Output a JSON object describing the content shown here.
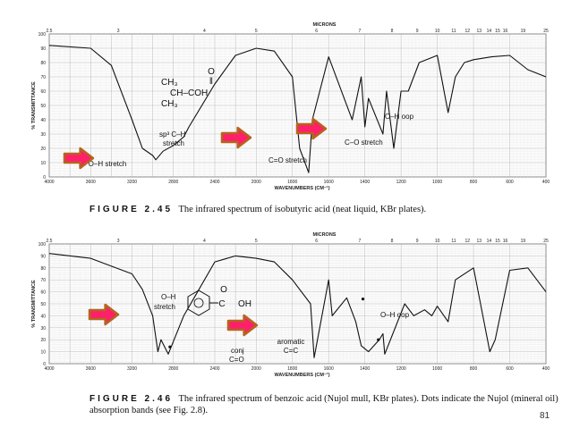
{
  "chart_data": [
    {
      "type": "line",
      "figure_label": "FIGURE 2.45",
      "caption": "The infrared spectrum of isobutyric acid (neat liquid, KBr plates).",
      "xlabel": "WAVENUMBERS (CM⁻¹)",
      "ylabel": "% TRANSMITTANCE",
      "top_axis_label": "MICRONS",
      "x_ticks": [
        "4000",
        "3600",
        "3200",
        "2800",
        "2400",
        "2000",
        "1800",
        "1600",
        "1400",
        "1200",
        "1000",
        "800",
        "600",
        "400"
      ],
      "y_ticks": [
        "0",
        "10",
        "20",
        "30",
        "40",
        "50",
        "60",
        "70",
        "80",
        "90",
        "100"
      ],
      "top_ticks": [
        "2.5",
        "3",
        "4",
        "5",
        "6",
        "7",
        "8",
        "9",
        "10",
        "11",
        "12",
        "13",
        "14",
        "15",
        "16",
        "19",
        "25"
      ],
      "ylim": [
        0,
        100
      ],
      "x": [
        "4000",
        "3600",
        "3400",
        "3200",
        "3100",
        "3000",
        "2970",
        "2900",
        "2800",
        "2700",
        "2650",
        "2400",
        "2200",
        "2000",
        "1900",
        "1800",
        "1760",
        "1710",
        "1690",
        "1600",
        "1470",
        "1420",
        "1400",
        "1380",
        "1300",
        "1280",
        "1240",
        "1200",
        "1160",
        "1100",
        "1000",
        "940",
        "900",
        "850",
        "800",
        "700",
        "600",
        "500",
        "400"
      ],
      "y": [
        92,
        90,
        78,
        40,
        20,
        15,
        12,
        18,
        22,
        28,
        35,
        65,
        85,
        90,
        88,
        70,
        20,
        3,
        40,
        84,
        40,
        70,
        35,
        55,
        30,
        60,
        20,
        60,
        60,
        80,
        85,
        45,
        70,
        80,
        82,
        84,
        85,
        75,
        70
      ],
      "annotations": [
        "CH₃",
        "CH–COH",
        "CH₃",
        "O",
        "‖",
        "sp³ C–H",
        "stretch",
        "O–H stretch",
        "C=O stretch",
        "C–O stretch",
        "O–H oop"
      ],
      "arrow_color": "#ff1f6b",
      "arrow_outline": "#b5651d"
    },
    {
      "type": "line",
      "figure_label": "FIGURE 2.46",
      "caption": "The infrared spectrum of benzoic acid (Nujol mull, KBr plates). Dots indicate the Nujol (mineral oil) absorption bands (see Fig. 2.8).",
      "xlabel": "WAVENUMBERS (CM⁻¹)",
      "ylabel": "% TRANSMITTANCE",
      "top_axis_label": "MICRONS",
      "x_ticks": [
        "4000",
        "3600",
        "3200",
        "2800",
        "2400",
        "2000",
        "1800",
        "1600",
        "1400",
        "1200",
        "1000",
        "800",
        "600",
        "400"
      ],
      "y_ticks": [
        "0",
        "10",
        "20",
        "30",
        "40",
        "50",
        "60",
        "70",
        "80",
        "90",
        "100"
      ],
      "top_ticks": [
        "2.5",
        "3",
        "4",
        "5",
        "6",
        "7",
        "8",
        "9",
        "10",
        "11",
        "12",
        "13",
        "14",
        "15",
        "16",
        "19",
        "25"
      ],
      "ylim": [
        0,
        100
      ],
      "x": [
        "4000",
        "3600",
        "3200",
        "3100",
        "3000",
        "2950",
        "2920",
        "2850",
        "2700",
        "2600",
        "2400",
        "2200",
        "2000",
        "1900",
        "1800",
        "1700",
        "1680",
        "1600",
        "1580",
        "1500",
        "1450",
        "1420",
        "1380",
        "1320",
        "1300",
        "1290",
        "1180",
        "1130",
        "1070",
        "1030",
        "1000",
        "940",
        "900",
        "800",
        "710",
        "680",
        "600",
        "500",
        "400"
      ],
      "y": [
        92,
        88,
        75,
        62,
        40,
        10,
        20,
        8,
        40,
        55,
        85,
        90,
        88,
        85,
        70,
        50,
        5,
        70,
        40,
        55,
        35,
        15,
        10,
        20,
        25,
        8,
        50,
        40,
        45,
        40,
        48,
        35,
        70,
        80,
        10,
        20,
        78,
        80,
        60
      ],
      "annotations": [
        "O–H",
        "stretch",
        "O",
        "C",
        "OH",
        "conj",
        "C=O",
        "aromatic",
        "C=C",
        "O–H oop"
      ],
      "arrow_color": "#ff1f6b",
      "arrow_outline": "#b5651d"
    }
  ],
  "page_number": "81"
}
